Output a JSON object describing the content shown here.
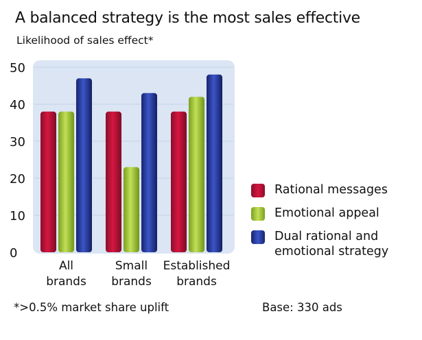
{
  "title": "A balanced strategy is the most sales effective",
  "subtitle": "Likelihood of sales effect*",
  "footnote": "*>0.5% market share uplift",
  "base": "Base: 330 ads",
  "legend": [
    {
      "label": "Rational messages",
      "color": "#c8123a"
    },
    {
      "label": "Emotional appeal",
      "color": "#a4c93a"
    },
    {
      "label": "Dual rational and emotional strategy",
      "color": "#2a3fa8"
    }
  ],
  "chart_data": {
    "type": "bar",
    "title": "A balanced strategy is the most sales effective",
    "subtitle": "Likelihood of sales effect*",
    "categories": [
      "All brands",
      "Small brands",
      "Established brands"
    ],
    "category_lines": [
      [
        "All",
        "brands"
      ],
      [
        "Small",
        "brands"
      ],
      [
        "Established",
        "brands"
      ]
    ],
    "series": [
      {
        "name": "Rational messages",
        "values": [
          38,
          38,
          38
        ],
        "color": "#c8123a"
      },
      {
        "name": "Emotional appeal",
        "values": [
          38,
          23,
          42
        ],
        "color": "#a4c93a"
      },
      {
        "name": "Dual rational and emotional strategy",
        "values": [
          47,
          43,
          48
        ],
        "color": "#2a3fa8"
      }
    ],
    "ylim": [
      0,
      50
    ],
    "yticks": [
      "0",
      "10",
      "20",
      "30",
      "40",
      "50"
    ],
    "xlabel": "",
    "ylabel": "",
    "grid": true,
    "legend_position": "right"
  }
}
